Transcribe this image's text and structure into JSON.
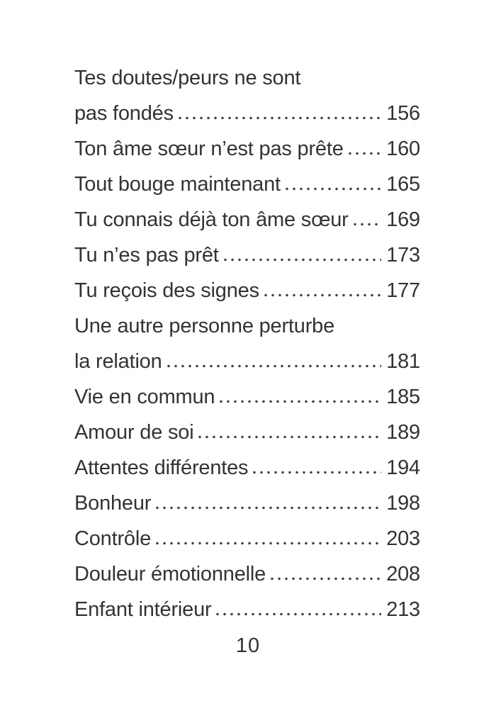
{
  "page": {
    "background_color": "#ffffff",
    "text_color": "#333333"
  },
  "toc": {
    "entries": [
      {
        "lines": [
          "Tes doutes/peurs ne sont",
          "pas fondés"
        ],
        "page": "156"
      },
      {
        "lines": [
          "Ton âme sœur n’est pas prête"
        ],
        "page": "160"
      },
      {
        "lines": [
          "Tout bouge maintenant"
        ],
        "page": "165"
      },
      {
        "lines": [
          "Tu connais déjà ton âme sœur"
        ],
        "page": "169"
      },
      {
        "lines": [
          "Tu n’es pas prêt"
        ],
        "page": "173"
      },
      {
        "lines": [
          "Tu reçois des signes"
        ],
        "page": "177"
      },
      {
        "lines": [
          "Une autre personne perturbe",
          "la relation"
        ],
        "page": "181"
      },
      {
        "lines": [
          "Vie en commun"
        ],
        "page": "185"
      },
      {
        "lines": [
          "Amour de soi"
        ],
        "page": "189"
      },
      {
        "lines": [
          "Attentes différentes"
        ],
        "page": "194"
      },
      {
        "lines": [
          "Bonheur"
        ],
        "page": "198"
      },
      {
        "lines": [
          "Contrôle"
        ],
        "page": "203"
      },
      {
        "lines": [
          "Douleur émotionnelle"
        ],
        "page": "208"
      },
      {
        "lines": [
          "Enfant intérieur"
        ],
        "page": "213"
      }
    ]
  },
  "footer": {
    "page_number": "10"
  }
}
